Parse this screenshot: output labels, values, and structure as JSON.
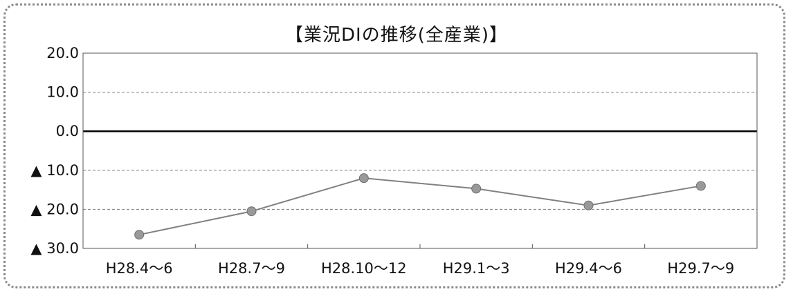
{
  "chart_data": {
    "type": "line",
    "title": "【業況DIの推移(全産業)】",
    "categories": [
      "H28.4～6",
      "H28.7～9",
      "H28.10～12",
      "H29.1～3",
      "H29.4～6",
      "H29.7～9"
    ],
    "series": [
      {
        "values": [
          -26.5,
          -20.5,
          -12.0,
          -14.7,
          -19.0,
          -14.0
        ]
      }
    ],
    "ylim": [
      -30,
      20
    ],
    "yticks": [
      20,
      10,
      0,
      -10,
      -20,
      -30
    ],
    "ytick_labels": [
      "20.0",
      "10.0",
      "0.0",
      "▲ 10.0",
      "▲ 20.0",
      "▲ 30.0"
    ],
    "grid": true,
    "line_color": "#808080",
    "marker_color": "#999999"
  }
}
